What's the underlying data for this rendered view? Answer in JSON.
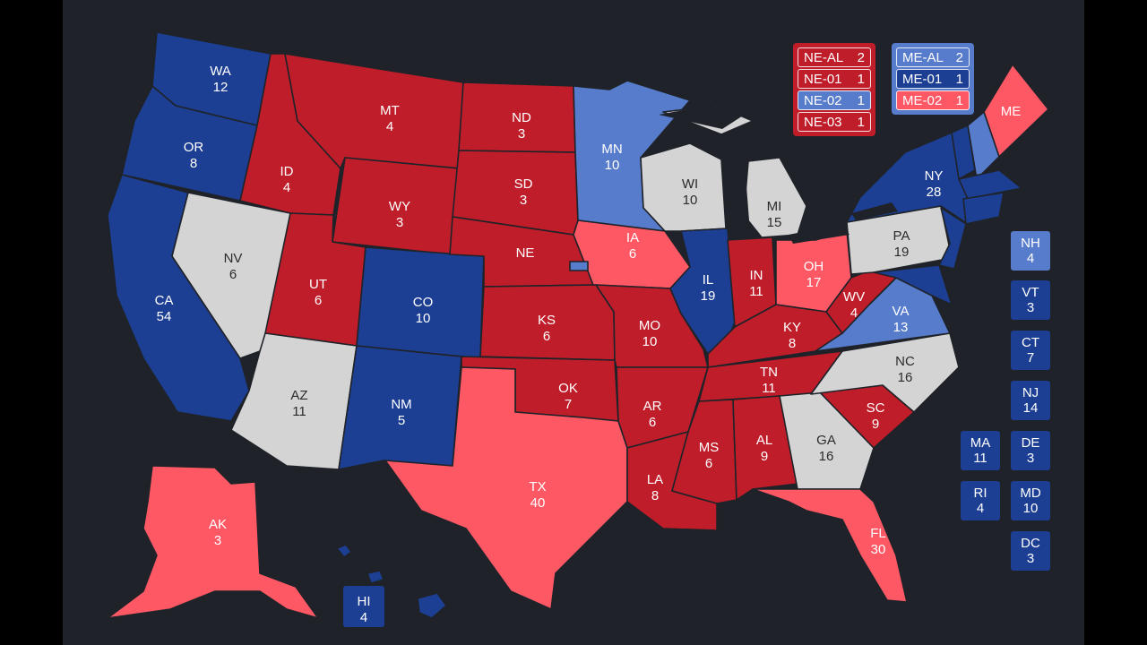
{
  "colors": {
    "safe_d": "#1c3f94",
    "lean_d": "#577ccc",
    "safe_r": "#bf1d29",
    "lean_r": "#ff5865",
    "tossup": "#d4d4d4",
    "background": "#1f2329"
  },
  "states": {
    "WA": {
      "abbr": "WA",
      "votes": "12",
      "rating": "safe_d"
    },
    "OR": {
      "abbr": "OR",
      "votes": "8",
      "rating": "safe_d"
    },
    "CA": {
      "abbr": "CA",
      "votes": "54",
      "rating": "safe_d"
    },
    "NV": {
      "abbr": "NV",
      "votes": "6",
      "rating": "tossup"
    },
    "ID": {
      "abbr": "ID",
      "votes": "4",
      "rating": "safe_r"
    },
    "MT": {
      "abbr": "MT",
      "votes": "4",
      "rating": "safe_r"
    },
    "WY": {
      "abbr": "WY",
      "votes": "3",
      "rating": "safe_r"
    },
    "UT": {
      "abbr": "UT",
      "votes": "6",
      "rating": "safe_r"
    },
    "CO": {
      "abbr": "CO",
      "votes": "10",
      "rating": "safe_d"
    },
    "AZ": {
      "abbr": "AZ",
      "votes": "11",
      "rating": "tossup"
    },
    "NM": {
      "abbr": "NM",
      "votes": "5",
      "rating": "safe_d"
    },
    "ND": {
      "abbr": "ND",
      "votes": "3",
      "rating": "safe_r"
    },
    "SD": {
      "abbr": "SD",
      "votes": "3",
      "rating": "safe_r"
    },
    "NE": {
      "abbr": "NE",
      "votes": "",
      "rating": "safe_r"
    },
    "KS": {
      "abbr": "KS",
      "votes": "6",
      "rating": "safe_r"
    },
    "OK": {
      "abbr": "OK",
      "votes": "7",
      "rating": "safe_r"
    },
    "TX": {
      "abbr": "TX",
      "votes": "40",
      "rating": "lean_r"
    },
    "MN": {
      "abbr": "MN",
      "votes": "10",
      "rating": "lean_d"
    },
    "IA": {
      "abbr": "IA",
      "votes": "6",
      "rating": "lean_r"
    },
    "MO": {
      "abbr": "MO",
      "votes": "10",
      "rating": "safe_r"
    },
    "AR": {
      "abbr": "AR",
      "votes": "6",
      "rating": "safe_r"
    },
    "LA": {
      "abbr": "LA",
      "votes": "8",
      "rating": "safe_r"
    },
    "WI": {
      "abbr": "WI",
      "votes": "10",
      "rating": "tossup"
    },
    "IL": {
      "abbr": "IL",
      "votes": "19",
      "rating": "safe_d"
    },
    "MI": {
      "abbr": "MI",
      "votes": "15",
      "rating": "tossup"
    },
    "IN": {
      "abbr": "IN",
      "votes": "11",
      "rating": "safe_r"
    },
    "OH": {
      "abbr": "OH",
      "votes": "17",
      "rating": "lean_r"
    },
    "KY": {
      "abbr": "KY",
      "votes": "8",
      "rating": "safe_r"
    },
    "TN": {
      "abbr": "TN",
      "votes": "11",
      "rating": "safe_r"
    },
    "MS": {
      "abbr": "MS",
      "votes": "6",
      "rating": "safe_r"
    },
    "AL": {
      "abbr": "AL",
      "votes": "9",
      "rating": "safe_r"
    },
    "GA": {
      "abbr": "GA",
      "votes": "16",
      "rating": "tossup"
    },
    "FL": {
      "abbr": "FL",
      "votes": "30",
      "rating": "lean_r"
    },
    "SC": {
      "abbr": "SC",
      "votes": "9",
      "rating": "safe_r"
    },
    "NC": {
      "abbr": "NC",
      "votes": "16",
      "rating": "tossup"
    },
    "VA": {
      "abbr": "VA",
      "votes": "13",
      "rating": "lean_d"
    },
    "WV": {
      "abbr": "WV",
      "votes": "4",
      "rating": "safe_r"
    },
    "PA": {
      "abbr": "PA",
      "votes": "19",
      "rating": "tossup"
    },
    "NY": {
      "abbr": "NY",
      "votes": "28",
      "rating": "safe_d"
    },
    "ME": {
      "abbr": "ME",
      "votes": "",
      "rating": "lean_r"
    },
    "AK": {
      "abbr": "AK",
      "votes": "3",
      "rating": "lean_r"
    },
    "HI": {
      "abbr": "HI",
      "votes": "4",
      "rating": "safe_d"
    }
  },
  "small_states": [
    {
      "abbr": "NH",
      "votes": "4",
      "rating": "lean_d"
    },
    {
      "abbr": "VT",
      "votes": "3",
      "rating": "safe_d"
    },
    {
      "abbr": "CT",
      "votes": "7",
      "rating": "safe_d"
    },
    {
      "abbr": "NJ",
      "votes": "14",
      "rating": "safe_d"
    },
    {
      "abbr": "MA",
      "votes": "11",
      "rating": "safe_d"
    },
    {
      "abbr": "DE",
      "votes": "3",
      "rating": "safe_d"
    },
    {
      "abbr": "RI",
      "votes": "4",
      "rating": "safe_d"
    },
    {
      "abbr": "MD",
      "votes": "10",
      "rating": "safe_d"
    },
    {
      "abbr": "DC",
      "votes": "3",
      "rating": "safe_d"
    }
  ],
  "nebraska_districts": [
    {
      "label": "NE-AL",
      "votes": "2",
      "rating": "safe_r"
    },
    {
      "label": "NE-01",
      "votes": "1",
      "rating": "safe_r"
    },
    {
      "label": "NE-02",
      "votes": "1",
      "rating": "lean_d"
    },
    {
      "label": "NE-03",
      "votes": "1",
      "rating": "safe_r"
    }
  ],
  "maine_districts": [
    {
      "label": "ME-AL",
      "votes": "2",
      "rating": "lean_d"
    },
    {
      "label": "ME-01",
      "votes": "1",
      "rating": "safe_d"
    },
    {
      "label": "ME-02",
      "votes": "1",
      "rating": "lean_r"
    }
  ]
}
